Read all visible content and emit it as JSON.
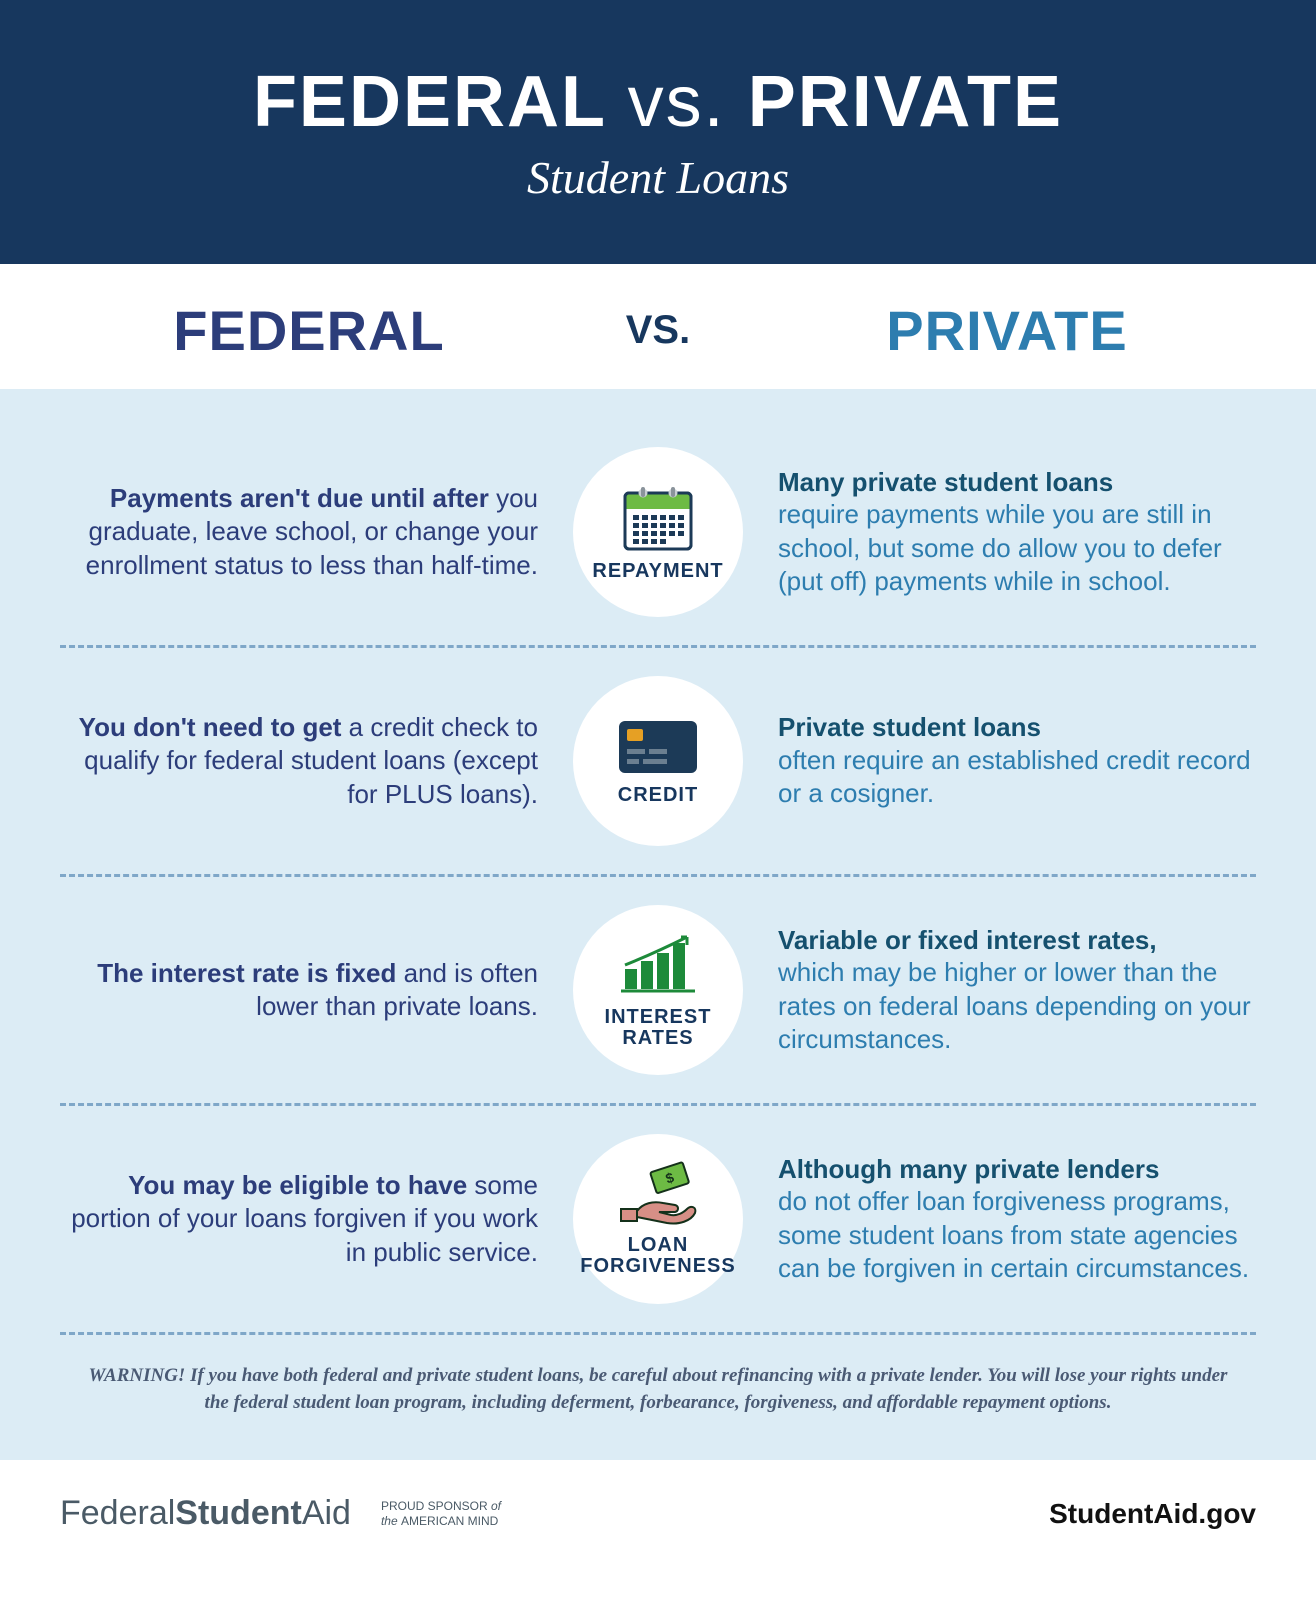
{
  "colors": {
    "header_bg": "#17375e",
    "body_bg": "#dcecf5",
    "federal_text": "#2c3d7a",
    "private_heading": "#2d7daf",
    "private_bold": "#15506e",
    "divider": "#7fa7c8",
    "icon_green": "#6dbb44",
    "icon_navy": "#1c3a57",
    "icon_orange": "#e6a024"
  },
  "header": {
    "title_part1": "FEDERAL",
    "title_vs": "vs.",
    "title_part2": "PRIVATE",
    "subtitle": "Student Loans"
  },
  "col_federal": "FEDERAL",
  "col_vs": "VS.",
  "col_private": "PRIVATE",
  "rows": [
    {
      "icon": "calendar",
      "label": "REPAYMENT",
      "fed_bold": "Payments aren't due until after",
      "fed_rest": " you graduate, leave school, or change your enrollment status to less than half-time.",
      "priv_bold": "Many private student loans",
      "priv_rest": "require payments while you are still in school, but some do allow you to defer (put off) payments while in school."
    },
    {
      "icon": "card",
      "label": "CREDIT",
      "fed_bold": "You don't need to get",
      "fed_rest": " a credit check to qualify for federal student loans (except for PLUS loans).",
      "priv_bold": "Private student loans",
      "priv_rest": "often require an established credit record or a cosigner."
    },
    {
      "icon": "chart",
      "label": "INTEREST RATES",
      "fed_bold": "The interest rate is fixed",
      "fed_rest": " and is often lower than private loans.",
      "priv_bold": "Variable or fixed interest rates,",
      "priv_rest": "which may be higher or lower than the rates on federal loans depending on your circumstances."
    },
    {
      "icon": "hand",
      "label": "LOAN FORGIVENESS",
      "fed_bold": "You may be eligible to have",
      "fed_rest": " some portion of your loans forgiven if you work in public service.",
      "priv_bold": "Although many private lenders",
      "priv_rest": "do not offer loan forgiveness programs, some student loans from state agencies can be forgiven in certain circumstances."
    }
  ],
  "warning": "WARNING! If you have both federal and private student loans, be careful about refinancing with a private lender. You will lose your rights under the federal student loan program, including deferment, forbearance, forgiveness, and affordable repayment options.",
  "footer": {
    "brand_part1": "Federal",
    "brand_part2": "Student",
    "brand_part3": "Aid",
    "sponsor_line1": "PROUD SPONSOR ",
    "sponsor_of": "of",
    "sponsor_line2_the": "the ",
    "sponsor_line2": "AMERICAN MIND",
    "url": "StudentAid.gov"
  }
}
